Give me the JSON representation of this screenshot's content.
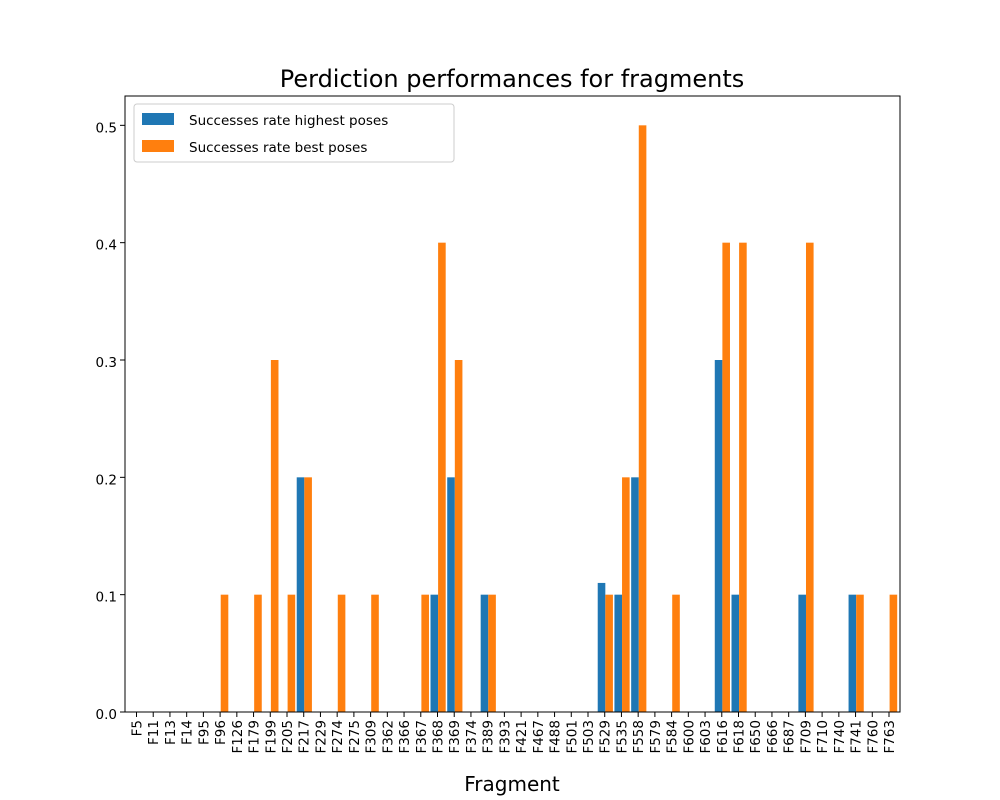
{
  "chart_data": {
    "type": "bar",
    "title": "Perdiction performances for fragments",
    "xlabel": "Fragment",
    "ylabel": "",
    "ylim": [
      0,
      0.525
    ],
    "yticks": [
      "0.0",
      "0.1",
      "0.2",
      "0.3",
      "0.4",
      "0.5"
    ],
    "ytick_values": [
      0,
      0.1,
      0.2,
      0.3,
      0.4,
      0.5
    ],
    "grid": false,
    "legend_position": "top-left",
    "categories": [
      "F5",
      "F11",
      "F13",
      "F14",
      "F95",
      "F96",
      "F126",
      "F179",
      "F199",
      "F205",
      "F217",
      "F229",
      "F274",
      "F275",
      "F309",
      "F362",
      "F366",
      "F367",
      "F368",
      "F369",
      "F374",
      "F389",
      "F393",
      "F421",
      "F467",
      "F488",
      "F501",
      "F503",
      "F529",
      "F535",
      "F558",
      "F579",
      "F584",
      "F600",
      "F603",
      "F616",
      "F618",
      "F650",
      "F666",
      "F687",
      "F709",
      "F710",
      "F740",
      "F741",
      "F760",
      "F763"
    ],
    "series": [
      {
        "name": "Successes rate highest poses",
        "color": "#1f77b4",
        "values": [
          0,
          0,
          0,
          0,
          0,
          0,
          0,
          0,
          0,
          0,
          0.2,
          0,
          0,
          0,
          0,
          0,
          0,
          0,
          0.1,
          0.2,
          0,
          0.1,
          0,
          0,
          0,
          0,
          0,
          0,
          0.11,
          0.1,
          0.2,
          0,
          0,
          0,
          0,
          0.3,
          0.1,
          0,
          0,
          0,
          0.1,
          0,
          0,
          0.1,
          0,
          0
        ]
      },
      {
        "name": "Successes rate best poses",
        "color": "#ff7f0e",
        "values": [
          0,
          0,
          0,
          0,
          0,
          0.1,
          0,
          0.1,
          0.3,
          0.1,
          0.2,
          0,
          0.1,
          0,
          0.1,
          0,
          0,
          0.1,
          0.4,
          0.3,
          0,
          0.1,
          0,
          0,
          0,
          0,
          0,
          0,
          0.1,
          0.2,
          0.5,
          0,
          0.1,
          0,
          0,
          0.4,
          0.4,
          0,
          0,
          0,
          0.4,
          0,
          0,
          0.1,
          0,
          0.1
        ]
      }
    ]
  }
}
